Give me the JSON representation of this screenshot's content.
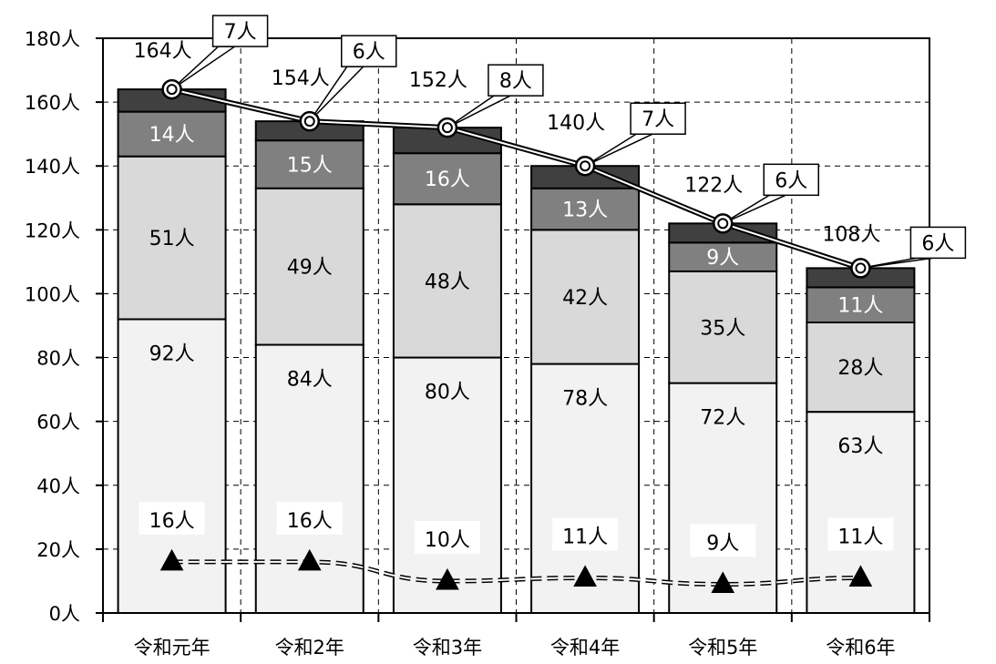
{
  "chart_data": {
    "type": "bar",
    "stacked": true,
    "categories": [
      "令和元年",
      "令和2年",
      "令和3年",
      "令和4年",
      "令和5年",
      "令和6年"
    ],
    "y_tick_labels": [
      "0人",
      "20人",
      "40人",
      "60人",
      "80人",
      "100人",
      "120人",
      "140人",
      "160人",
      "180人"
    ],
    "ylim": [
      0,
      180
    ],
    "grid": "dashed horizontal and vertical",
    "series": [
      {
        "values": [
          92,
          84,
          80,
          78,
          72,
          63
        ],
        "labels": [
          "92人",
          "84人",
          "80人",
          "78人",
          "72人",
          "63人"
        ],
        "color": "#f2f2f2"
      },
      {
        "values": [
          51,
          49,
          48,
          42,
          35,
          28
        ],
        "labels": [
          "51人",
          "49人",
          "48人",
          "42人",
          "35人",
          "28人"
        ],
        "color": "#d9d9d9"
      },
      {
        "values": [
          14,
          15,
          16,
          13,
          9,
          11
        ],
        "labels": [
          "14人",
          "15人",
          "16人",
          "13人",
          "9人",
          "11人"
        ],
        "color": "#808080"
      },
      {
        "values": [
          7,
          6,
          8,
          7,
          6,
          6
        ],
        "labels": [
          "7人",
          "6人",
          "8人",
          "7人",
          "6人",
          "6人"
        ],
        "color": "#404040"
      }
    ],
    "total_line": {
      "values": [
        164,
        154,
        152,
        140,
        122,
        108
      ],
      "labels": [
        "164人",
        "154人",
        "152人",
        "140人",
        "122人",
        "108人"
      ]
    },
    "triangle_line": {
      "values": [
        16,
        16,
        10,
        11,
        9,
        11
      ],
      "labels": [
        "16人",
        "16人",
        "10人",
        "11人",
        "9人",
        "11人"
      ]
    }
  }
}
